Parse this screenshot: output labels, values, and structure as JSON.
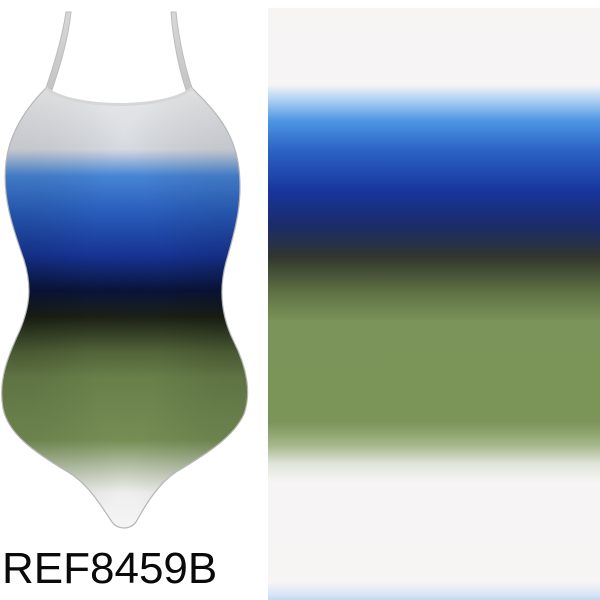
{
  "product": {
    "reference_code": "REF8459B"
  },
  "colors": {
    "white": "#f6f4f4",
    "light_blue": "#4e97e3",
    "royal_blue": "#2c63c6",
    "navy": "#17359c",
    "dark_transition": "#31362e",
    "olive_green": "#7b9559"
  }
}
